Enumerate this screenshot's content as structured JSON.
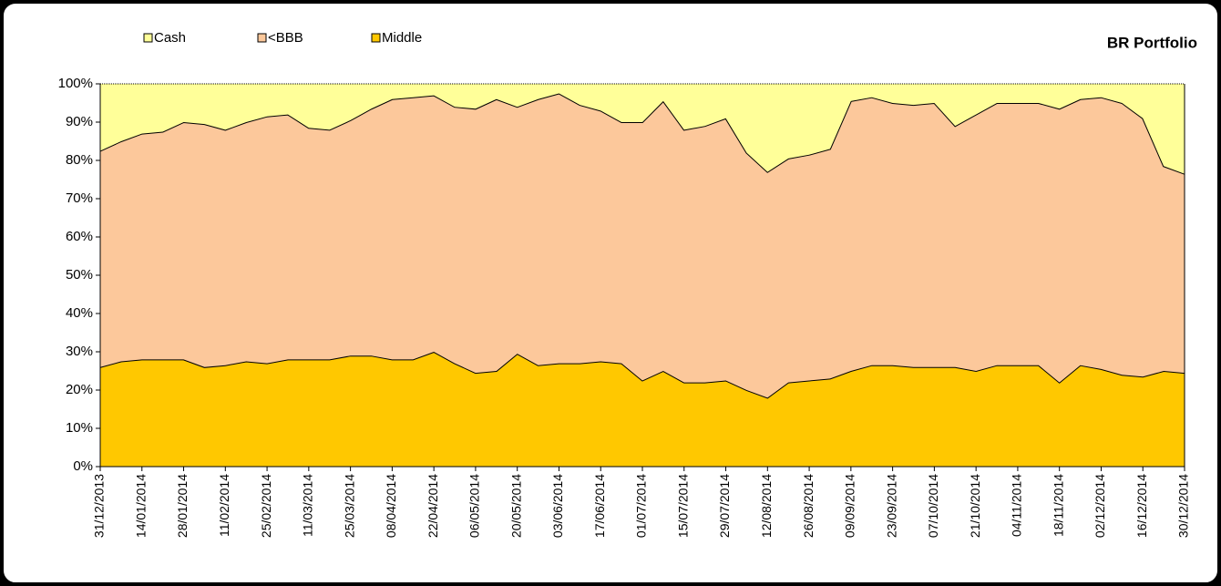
{
  "chart_data": {
    "type": "stacked_area",
    "title": "BR Portfolio",
    "categories": [
      "31/12/2013",
      null,
      "14/01/2014",
      null,
      "28/01/2014",
      null,
      "11/02/2014",
      null,
      "25/02/2014",
      null,
      "11/03/2014",
      null,
      "25/03/2014",
      null,
      "08/04/2014",
      null,
      "22/04/2014",
      null,
      "06/05/2014",
      null,
      "20/05/2014",
      null,
      "03/06/2014",
      null,
      "17/06/2014",
      null,
      "01/07/2014",
      null,
      "15/07/2014",
      null,
      "29/07/2014",
      null,
      "12/08/2014",
      null,
      "26/08/2014",
      null,
      "09/09/2014",
      null,
      "23/09/2014",
      null,
      "07/10/2014",
      null,
      "21/10/2014",
      null,
      "04/11/2014",
      null,
      "18/11/2014",
      null,
      "02/12/2014",
      null,
      "16/12/2014",
      null,
      "30/12/2014"
    ],
    "series": [
      {
        "name": "Middle",
        "color": "#ffc800",
        "values": [
          26,
          27.5,
          28,
          28,
          28,
          26,
          26.5,
          27.5,
          27,
          28,
          28,
          28,
          29,
          29,
          28,
          28,
          30,
          27,
          24.5,
          25,
          29.5,
          26.5,
          27,
          27,
          27.5,
          27,
          22.5,
          25,
          22,
          22,
          22.5,
          20,
          18,
          22,
          22.5,
          23,
          25,
          26.5,
          26.5,
          26,
          26,
          26,
          25,
          26.5,
          26.5,
          26.5,
          22,
          26.5,
          25.5,
          24,
          23.5,
          25,
          24.5
        ]
      },
      {
        "name": "<BBB",
        "color": "#fcc89b",
        "values": [
          56.5,
          57.5,
          59,
          59.5,
          62,
          63.5,
          61.5,
          62.5,
          64.5,
          64,
          60.5,
          60,
          61.5,
          64.5,
          68,
          68.5,
          67,
          67,
          69,
          71,
          64.5,
          69.5,
          70.5,
          67.5,
          65.5,
          63,
          67.5,
          70.5,
          66,
          67,
          68.5,
          62,
          59,
          58.5,
          59,
          60,
          70.5,
          70,
          68.5,
          68.5,
          69,
          63,
          67,
          68.5,
          68.5,
          68.5,
          71.5,
          69.5,
          71,
          71,
          67.5,
          53.5,
          52
        ]
      },
      {
        "name": "Cash",
        "color": "#ffff99",
        "values": [
          17.5,
          15,
          13,
          12.5,
          10,
          10.5,
          12,
          10,
          8.5,
          8,
          11.5,
          12,
          9.5,
          6.5,
          4,
          3.5,
          3,
          6,
          6.5,
          4,
          6,
          4,
          2.5,
          5.5,
          7,
          10,
          10,
          4.5,
          12,
          11,
          9,
          18,
          23,
          19.5,
          18.5,
          17,
          4.5,
          3.5,
          5,
          5.5,
          5,
          11,
          8,
          5,
          5,
          5,
          6.5,
          4,
          3.5,
          5,
          9,
          21.5,
          23.5
        ]
      }
    ],
    "ylim": [
      0,
      100
    ],
    "yticks": [
      {
        "value": 0,
        "label": "0%"
      },
      {
        "value": 10,
        "label": "10%"
      },
      {
        "value": 20,
        "label": "20%"
      },
      {
        "value": 30,
        "label": "30%"
      },
      {
        "value": 40,
        "label": "40%"
      },
      {
        "value": 50,
        "label": "50%"
      },
      {
        "value": 60,
        "label": "60%"
      },
      {
        "value": 70,
        "label": "70%"
      },
      {
        "value": 80,
        "label": "80%"
      },
      {
        "value": 90,
        "label": "90%"
      },
      {
        "value": 100,
        "label": "100%"
      }
    ],
    "legend": "top-left"
  }
}
